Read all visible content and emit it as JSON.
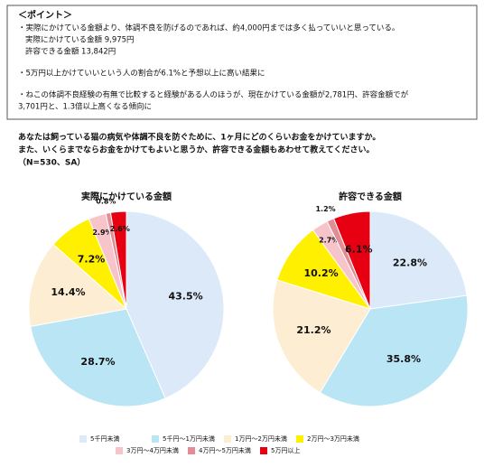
{
  "points": {
    "heading": "＜ポイント＞",
    "lines": [
      "・実際にかけている金額より、体調不良を防げるのであれば、約4,000円までは多く払っていいと思っている。",
      "実際にかけている金額 9,975円",
      "許容できる金額 13,842円",
      "・5万円以上かけていいという人の割合が6.1%と予想以上に高い結果に",
      "・ねこの体調不良経験の有無で比較すると経験がある人のほうが、現在かけている金額が2,781円、許容金額でが",
      "3,701円と、1.3倍以上高くなる傾向に"
    ]
  },
  "question": [
    "あなたは飼っている猫の病気や体調不良を防ぐために、1ヶ月にどのくらいお金をかけていますか。",
    "また、いくらまでならお金をかけてもよいと思うか、許容できる金額もあわせて教えてください。",
    "（N=530、SA）"
  ],
  "chart_data": [
    {
      "type": "pie",
      "title": "実際にかけている金額",
      "categories": [
        "5千円未満",
        "5千円～1万円未満",
        "1万円～2万円未満",
        "2万円～3万円未満",
        "3万円～4万円未満",
        "4万円～5万円未満",
        "5万円以上"
      ],
      "colors": [
        "#dce9f8",
        "#b9e5f5",
        "#fdedd2",
        "#fff000",
        "#f6c4c9",
        "#e48c94",
        "#e60012"
      ],
      "values": [
        43.5,
        28.7,
        14.4,
        7.2,
        2.9,
        0.8,
        2.6
      ],
      "value_labels": [
        "43.5%",
        "28.7%",
        "14.4%",
        "7.2%",
        "2.9%",
        "0.8%",
        "2.6%"
      ]
    },
    {
      "type": "pie",
      "title": "許容できる金額",
      "categories": [
        "5千円未満",
        "5千円～1万円未満",
        "1万円～2万円未満",
        "2万円～3万円未満",
        "3万円～4万円未満",
        "4万円～5万円未満",
        "5万円以上"
      ],
      "colors": [
        "#dce9f8",
        "#b9e5f5",
        "#fdedd2",
        "#fff000",
        "#f6c4c9",
        "#e48c94",
        "#e60012"
      ],
      "values": [
        22.8,
        35.8,
        21.2,
        10.2,
        2.7,
        1.2,
        6.1
      ],
      "value_labels": [
        "22.8%",
        "35.8%",
        "21.2%",
        "10.2%",
        "2.7%",
        "1.2%",
        "6.1%"
      ]
    }
  ]
}
